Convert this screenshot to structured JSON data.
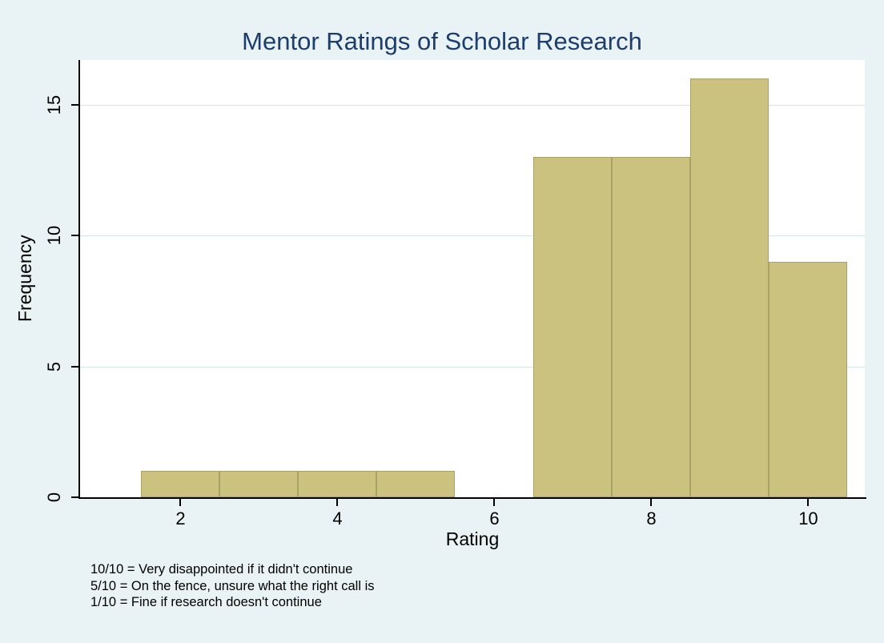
{
  "chart_data": {
    "type": "bar",
    "subtype": "histogram",
    "title": "Mentor Ratings of Scholar Research",
    "xlabel": "Rating",
    "ylabel": "Frequency",
    "bins": [
      {
        "x0": 1.5,
        "x1": 2.5,
        "freq": 1
      },
      {
        "x0": 2.5,
        "x1": 3.5,
        "freq": 1
      },
      {
        "x0": 3.5,
        "x1": 4.5,
        "freq": 1
      },
      {
        "x0": 4.5,
        "x1": 5.5,
        "freq": 1
      },
      {
        "x0": 6.5,
        "x1": 7.5,
        "freq": 13
      },
      {
        "x0": 7.5,
        "x1": 8.5,
        "freq": 13
      },
      {
        "x0": 8.5,
        "x1": 9.5,
        "freq": 16
      },
      {
        "x0": 9.5,
        "x1": 10.5,
        "freq": 9
      }
    ],
    "x_ticks": [
      2,
      4,
      6,
      8,
      10
    ],
    "y_ticks": [
      0,
      5,
      10,
      15
    ],
    "xlim": [
      0.72,
      10.72
    ],
    "ylim": [
      0,
      16.7
    ],
    "grid": "horizontal",
    "legend": "none",
    "colors": {
      "bar_fill": "#cac27e",
      "bar_border": "#a9a165",
      "background": "#e9f2f4",
      "plot_background": "#ffffff",
      "gridline": "#d3e5e9",
      "title_text": "#1c3e6e",
      "axis_text": "#000000"
    }
  },
  "notes": [
    "10/10 = Very disappointed if it didn't continue",
    "5/10 = On the fence, unsure what the right call is",
    "1/10 = Fine if research doesn't continue"
  ]
}
